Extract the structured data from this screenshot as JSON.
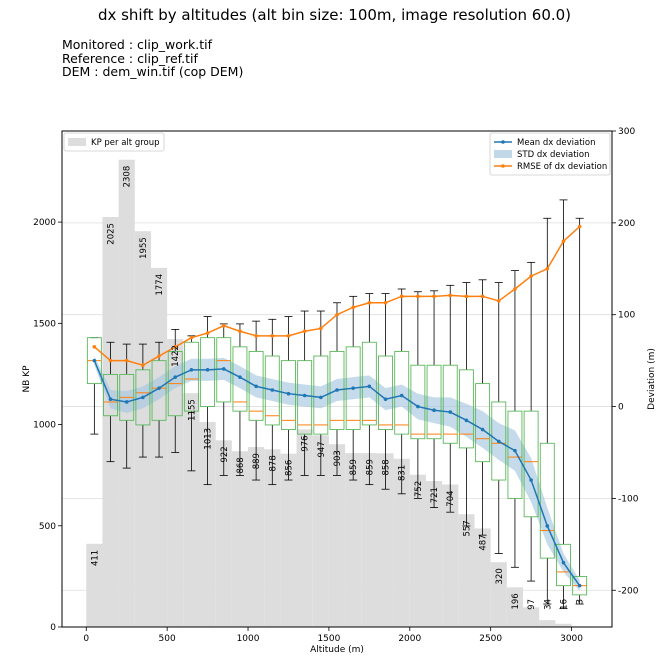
{
  "title": "dx shift by altitudes (alt bin size: 100m, image resolution 60.0)",
  "info_lines": [
    "Monitored : clip_work.tif",
    "Reference : clip_ref.tif",
    "DEM : dem_win.tif (cop DEM)"
  ],
  "colors": {
    "hist": "#dddddd",
    "mean": "#1f77b4",
    "std": "#a6c8e0",
    "rmse": "#ff7f0e",
    "box": "#5cb85c",
    "median": "#ff7f0e"
  },
  "chart_data": {
    "type": "bar+line",
    "xlabel": "Altitude (m)",
    "ylabel_left": "NB KP",
    "ylabel_right": "Deviation (m)",
    "xlim": [
      -150,
      3250
    ],
    "ylim_left": [
      0,
      2450
    ],
    "ylim_right": [
      -240,
      300
    ],
    "x_ticks": [
      0,
      500,
      1000,
      1500,
      2000,
      2500,
      3000
    ],
    "y_left_ticks": [
      0,
      500,
      1000,
      1500,
      2000
    ],
    "y_right_ticks": [
      -200,
      -100,
      0,
      100,
      200,
      300
    ],
    "legend_left": [
      "KP per alt group"
    ],
    "legend_right": [
      "Mean dx deviation",
      "STD dx deviation",
      "RMSE of dx deviation"
    ],
    "altitudes": [
      50,
      150,
      250,
      350,
      450,
      550,
      650,
      750,
      850,
      950,
      1050,
      1150,
      1250,
      1350,
      1450,
      1550,
      1650,
      1750,
      1850,
      1950,
      2050,
      2150,
      2250,
      2350,
      2450,
      2550,
      2650,
      2750,
      2850,
      2950,
      3050
    ],
    "kp_counts": [
      411,
      2025,
      2308,
      1955,
      1774,
      1422,
      1155,
      1013,
      922,
      868,
      889,
      878,
      856,
      976,
      947,
      903,
      859,
      859,
      858,
      831,
      752,
      721,
      704,
      557,
      487,
      320,
      196,
      97,
      34,
      16,
      3
    ],
    "mean_dx": [
      50,
      8,
      5,
      10,
      20,
      32,
      40,
      40,
      41,
      32,
      22,
      18,
      14,
      12,
      10,
      18,
      20,
      22,
      8,
      12,
      0,
      -4,
      -6,
      -15,
      -25,
      -38,
      -48,
      -80,
      -130,
      -170,
      -195
    ],
    "std_dx": [
      5,
      10,
      12,
      12,
      12,
      12,
      12,
      12,
      12,
      12,
      12,
      12,
      12,
      12,
      12,
      12,
      12,
      12,
      12,
      12,
      14,
      14,
      16,
      18,
      20,
      20,
      22,
      24,
      20,
      10,
      6
    ],
    "rmse_dx": [
      65,
      50,
      50,
      45,
      55,
      65,
      75,
      80,
      88,
      82,
      77,
      77,
      77,
      82,
      85,
      100,
      108,
      113,
      113,
      120,
      120,
      120,
      121,
      120,
      120,
      115,
      128,
      142,
      150,
      180,
      196
    ],
    "box_q1": [
      25,
      -10,
      -15,
      -20,
      -15,
      -10,
      -5,
      0,
      5,
      -5,
      -15,
      -20,
      -25,
      -30,
      -30,
      -25,
      -25,
      -20,
      -25,
      -30,
      -35,
      -35,
      -40,
      -45,
      -60,
      -80,
      -100,
      -120,
      -165,
      -195,
      -205
    ],
    "box_q3": [
      75,
      35,
      35,
      40,
      50,
      60,
      70,
      75,
      75,
      65,
      60,
      55,
      50,
      50,
      55,
      60,
      65,
      70,
      55,
      60,
      45,
      45,
      45,
      40,
      25,
      5,
      -5,
      -5,
      -40,
      -150,
      -185
    ],
    "box_median": [
      50,
      5,
      10,
      15,
      20,
      25,
      30,
      40,
      50,
      5,
      -5,
      -10,
      -15,
      -20,
      -20,
      -15,
      -15,
      -15,
      -20,
      -20,
      -30,
      -30,
      -30,
      -30,
      -35,
      -40,
      -55,
      -60,
      -135,
      -180,
      -195
    ],
    "whisker_low": [
      -30,
      -60,
      -67,
      -55,
      -55,
      -50,
      -70,
      -85,
      -75,
      -75,
      -80,
      -85,
      -80,
      -75,
      -75,
      -75,
      -80,
      -85,
      -90,
      -95,
      -100,
      -110,
      -115,
      -130,
      -140,
      -160,
      -175,
      -190,
      -215,
      -220,
      -215
    ],
    "whisker_high": [
      75,
      70,
      68,
      68,
      70,
      84,
      77,
      98,
      90,
      90,
      93,
      95,
      98,
      104,
      104,
      113,
      120,
      123,
      123,
      128,
      125,
      126,
      132,
      135,
      138,
      135,
      148,
      157,
      205,
      225,
      205
    ]
  }
}
